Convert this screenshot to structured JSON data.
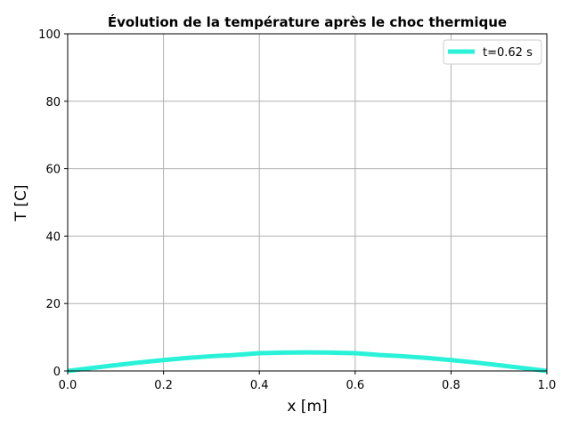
{
  "chart_data": {
    "type": "line",
    "title": "Évolution de la température après le choc thermique",
    "xlabel": "x [m]",
    "ylabel": "T [C]",
    "xlim": [
      0,
      1
    ],
    "ylim": [
      0,
      100
    ],
    "xticks": [
      0.0,
      0.2,
      0.4,
      0.6,
      0.8,
      1.0
    ],
    "xtick_labels": [
      "0.0",
      "0.2",
      "0.4",
      "0.6",
      "0.8",
      "1.0"
    ],
    "yticks": [
      0,
      20,
      40,
      60,
      80,
      100
    ],
    "ytick_labels": [
      "0",
      "20",
      "40",
      "60",
      "80",
      "100"
    ],
    "grid": true,
    "legend_position": "top-right",
    "series": [
      {
        "name": "t=0.62 s",
        "color": "#29f2d8",
        "x": [
          0.0,
          0.05,
          0.1,
          0.15,
          0.2,
          0.25,
          0.3,
          0.35,
          0.4,
          0.45,
          0.5,
          0.55,
          0.6,
          0.65,
          0.7,
          0.75,
          0.8,
          0.85,
          0.9,
          0.95,
          1.0
        ],
        "y": [
          0.0,
          0.87,
          1.72,
          2.52,
          3.24,
          3.86,
          4.37,
          4.74,
          5.27,
          5.45,
          5.5,
          5.45,
          5.27,
          4.74,
          4.37,
          3.86,
          3.24,
          2.52,
          1.72,
          0.87,
          0.0
        ]
      }
    ]
  }
}
